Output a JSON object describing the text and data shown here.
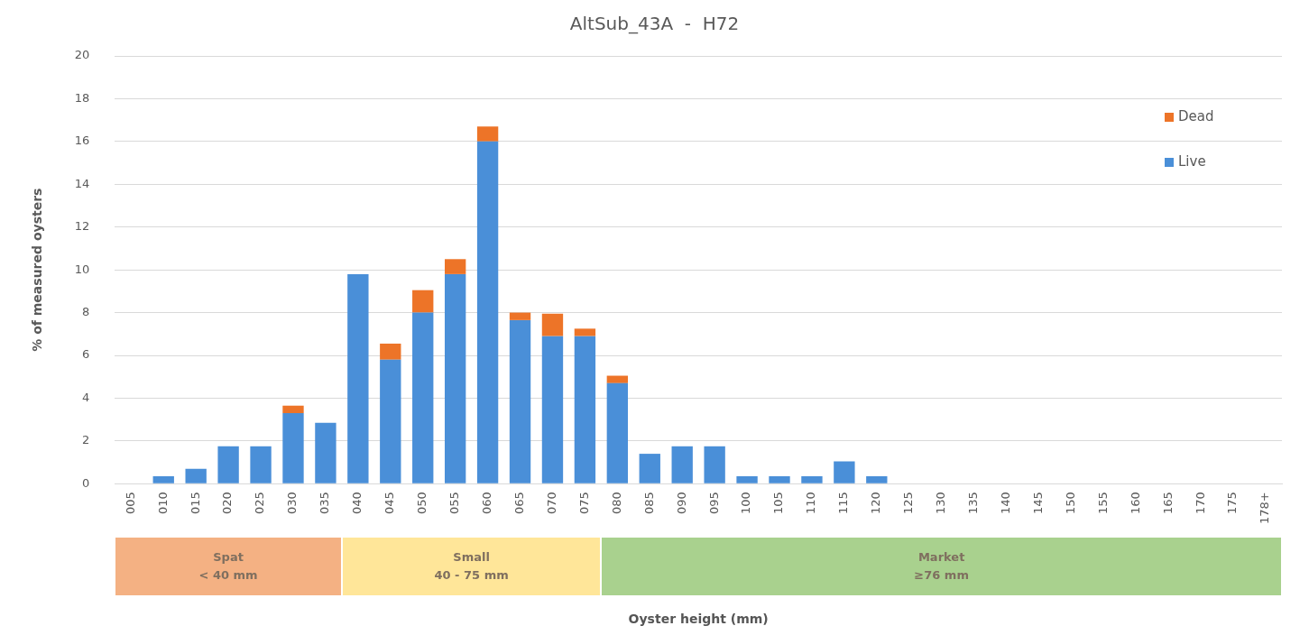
{
  "chart_data": {
    "type": "bar",
    "title": "AltSub_43A  -  H72",
    "ylabel": "% of measured oysters",
    "categories": [
      "005",
      "010",
      "015",
      "020",
      "025",
      "030",
      "035",
      "040",
      "045",
      "050",
      "055",
      "060",
      "065",
      "070",
      "075",
      "080",
      "085",
      "090",
      "095",
      "100",
      "105",
      "110",
      "115",
      "120",
      "125",
      "130",
      "135",
      "140",
      "145",
      "150",
      "155",
      "160",
      "165",
      "170",
      "175",
      "178+"
    ],
    "series": [
      {
        "name": "Live",
        "color": "#4a8fd8",
        "values": [
          0,
          0.35,
          0.7,
          1.75,
          1.75,
          3.3,
          2.85,
          9.8,
          5.8,
          8.0,
          9.8,
          16.0,
          7.65,
          6.9,
          6.9,
          4.7,
          1.4,
          1.75,
          1.75,
          0.35,
          0.35,
          0.35,
          1.05,
          0.35,
          0,
          0,
          0,
          0,
          0,
          0,
          0,
          0,
          0,
          0,
          0,
          0
        ]
      },
      {
        "name": "Dead",
        "color": "#ed7428",
        "values": [
          0,
          0,
          0,
          0,
          0,
          0.35,
          0,
          0,
          0.75,
          1.05,
          0.7,
          0.7,
          0.35,
          1.05,
          0.35,
          0.35,
          0,
          0,
          0,
          0,
          0,
          0,
          0,
          0,
          0,
          0,
          0,
          0,
          0,
          0,
          0,
          0,
          0,
          0,
          0,
          0
        ]
      }
    ],
    "stacked": true,
    "ylim": [
      0,
      20
    ],
    "yticks": [
      0,
      2,
      4,
      6,
      8,
      10,
      12,
      14,
      16,
      18,
      20
    ],
    "grid": "y",
    "legend": "top right",
    "annotations": [
      "Spat\n< 40 mm",
      "Small\n40 - 75 mm",
      "Market\n≥76 mm",
      "Oyster height (mm)"
    ]
  }
}
